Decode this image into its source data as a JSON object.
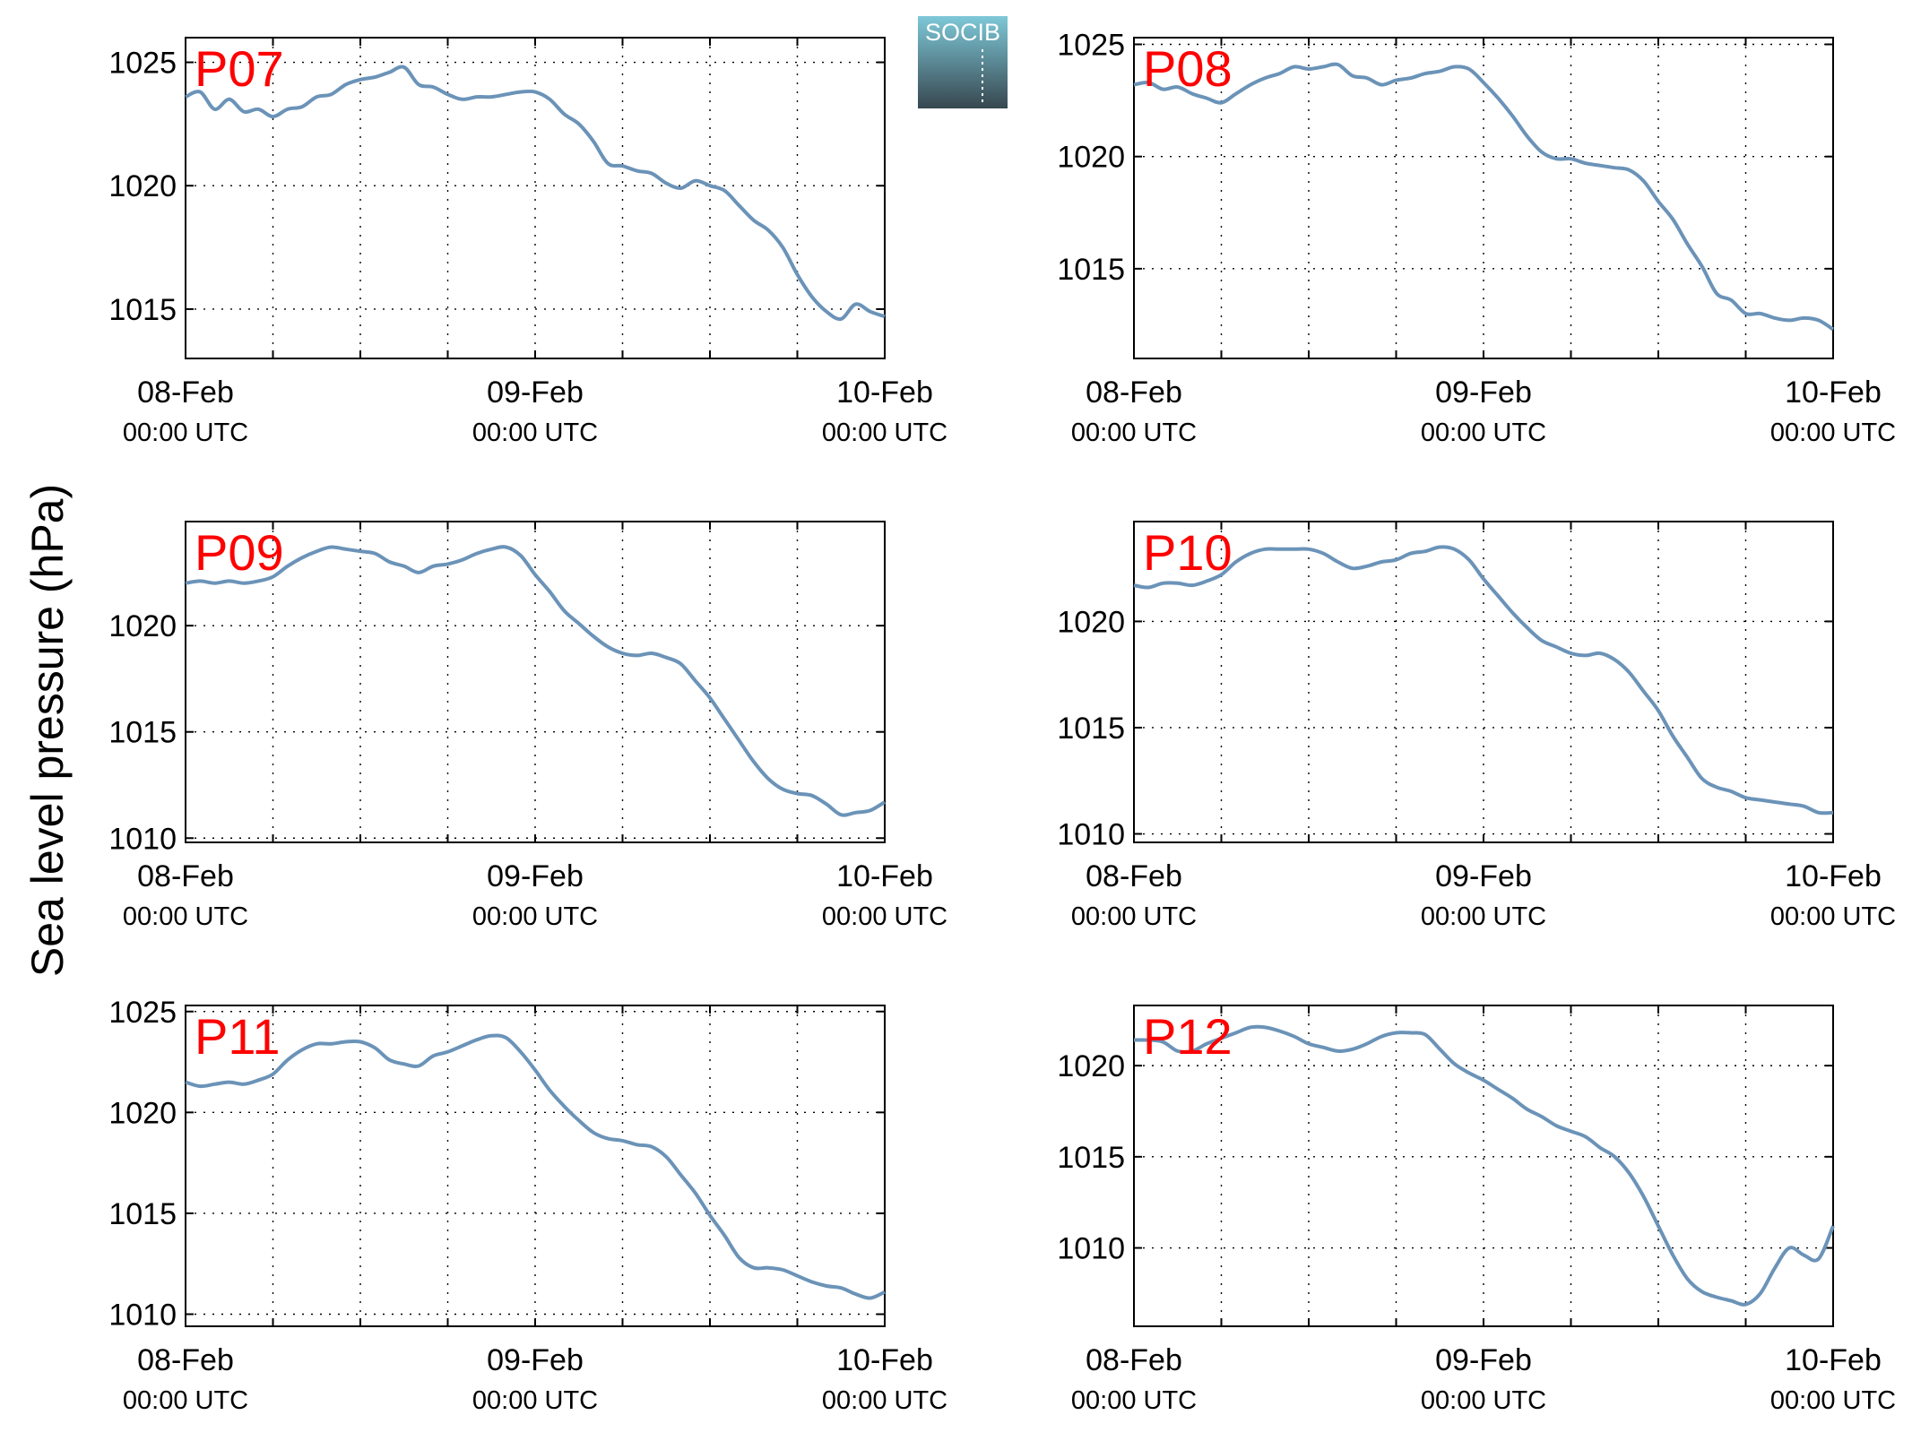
{
  "figure": {
    "ylabel": "Sea level pressure (hPa)",
    "logo": {
      "text": "SOCIB",
      "colors": {
        "top": "#7ec8d8",
        "bottom": "#37474f"
      }
    },
    "line_color": "#6b93b8",
    "label_color": "#ff0000"
  },
  "chart_data": [
    {
      "type": "line",
      "title": "P07",
      "ylim": [
        1013,
        1026
      ],
      "yticks": [
        1015,
        1020,
        1025
      ],
      "xlim": [
        0,
        48
      ],
      "grid": true,
      "xticks": [
        {
          "x": 0,
          "date": "08-Feb",
          "time": "00:00 UTC"
        },
        {
          "x": 24,
          "date": "09-Feb",
          "time": "00:00 UTC"
        },
        {
          "x": 48,
          "date": "10-Feb",
          "time": "00:00 UTC"
        }
      ],
      "x": [
        0,
        1,
        2,
        3,
        4,
        5,
        6,
        7,
        8,
        9,
        10,
        11,
        12,
        13,
        14,
        15,
        16,
        17,
        18,
        19,
        20,
        21,
        22,
        23,
        24,
        25,
        26,
        27,
        28,
        29,
        30,
        31,
        32,
        33,
        34,
        35,
        36,
        37,
        38,
        39,
        40,
        41,
        42,
        43,
        44,
        45,
        46,
        47,
        48
      ],
      "y": [
        1023.6,
        1023.8,
        1023.1,
        1023.5,
        1023.0,
        1023.1,
        1022.8,
        1023.1,
        1023.2,
        1023.6,
        1023.7,
        1024.1,
        1024.3,
        1024.4,
        1024.6,
        1024.8,
        1024.1,
        1024.0,
        1023.7,
        1023.5,
        1023.6,
        1023.6,
        1023.7,
        1023.8,
        1023.8,
        1023.5,
        1022.9,
        1022.5,
        1021.8,
        1020.9,
        1020.8,
        1020.6,
        1020.5,
        1020.1,
        1019.9,
        1020.2,
        1020.0,
        1019.8,
        1019.2,
        1018.6,
        1018.2,
        1017.5,
        1016.4,
        1015.5,
        1014.9,
        1014.6,
        1015.2,
        1014.9,
        1014.7
      ]
    },
    {
      "type": "line",
      "title": "P08",
      "ylim": [
        1011,
        1025.3
      ],
      "yticks": [
        1015,
        1020,
        1025
      ],
      "xlim": [
        0,
        48
      ],
      "grid": true,
      "xticks": [
        {
          "x": 0,
          "date": "08-Feb",
          "time": "00:00 UTC"
        },
        {
          "x": 24,
          "date": "09-Feb",
          "time": "00:00 UTC"
        },
        {
          "x": 48,
          "date": "10-Feb",
          "time": "00:00 UTC"
        }
      ],
      "x": [
        0,
        1,
        2,
        3,
        4,
        5,
        6,
        7,
        8,
        9,
        10,
        11,
        12,
        13,
        14,
        15,
        16,
        17,
        18,
        19,
        20,
        21,
        22,
        23,
        24,
        25,
        26,
        27,
        28,
        29,
        30,
        31,
        32,
        33,
        34,
        35,
        36,
        37,
        38,
        39,
        40,
        41,
        42,
        43,
        44,
        45,
        46,
        47,
        48
      ],
      "y": [
        1023.2,
        1023.3,
        1023.0,
        1023.1,
        1022.8,
        1022.6,
        1022.4,
        1022.8,
        1023.2,
        1023.5,
        1023.7,
        1024.0,
        1023.9,
        1024.0,
        1024.1,
        1023.6,
        1023.5,
        1023.2,
        1023.4,
        1023.5,
        1023.7,
        1023.8,
        1024.0,
        1023.9,
        1023.3,
        1022.6,
        1021.8,
        1020.9,
        1020.2,
        1019.9,
        1019.9,
        1019.7,
        1019.6,
        1019.5,
        1019.4,
        1018.9,
        1018.0,
        1017.2,
        1016.1,
        1015.1,
        1013.9,
        1013.6,
        1013.0,
        1013.0,
        1012.8,
        1012.7,
        1012.8,
        1012.7,
        1012.3
      ]
    },
    {
      "type": "line",
      "title": "P09",
      "ylim": [
        1009.8,
        1024.9
      ],
      "yticks": [
        1010,
        1015,
        1020
      ],
      "xlim": [
        0,
        48
      ],
      "grid": true,
      "xticks": [
        {
          "x": 0,
          "date": "08-Feb",
          "time": "00:00 UTC"
        },
        {
          "x": 24,
          "date": "09-Feb",
          "time": "00:00 UTC"
        },
        {
          "x": 48,
          "date": "10-Feb",
          "time": "00:00 UTC"
        }
      ],
      "x": [
        0,
        1,
        2,
        3,
        4,
        5,
        6,
        7,
        8,
        9,
        10,
        11,
        12,
        13,
        14,
        15,
        16,
        17,
        18,
        19,
        20,
        21,
        22,
        23,
        24,
        25,
        26,
        27,
        28,
        29,
        30,
        31,
        32,
        33,
        34,
        35,
        36,
        37,
        38,
        39,
        40,
        41,
        42,
        43,
        44,
        45,
        46,
        47,
        48
      ],
      "y": [
        1022.0,
        1022.1,
        1022.0,
        1022.1,
        1022.0,
        1022.1,
        1022.3,
        1022.8,
        1023.2,
        1023.5,
        1023.7,
        1023.6,
        1023.5,
        1023.4,
        1023.0,
        1022.8,
        1022.5,
        1022.8,
        1022.9,
        1023.1,
        1023.4,
        1023.6,
        1023.7,
        1023.3,
        1022.4,
        1021.6,
        1020.7,
        1020.1,
        1019.5,
        1019.0,
        1018.7,
        1018.6,
        1018.7,
        1018.5,
        1018.2,
        1017.4,
        1016.6,
        1015.6,
        1014.6,
        1013.6,
        1012.8,
        1012.3,
        1012.1,
        1012.0,
        1011.6,
        1011.1,
        1011.2,
        1011.3,
        1011.7
      ]
    },
    {
      "type": "line",
      "title": "P10",
      "ylim": [
        1009.6,
        1024.7
      ],
      "yticks": [
        1010,
        1015,
        1020
      ],
      "xlim": [
        0,
        48
      ],
      "grid": true,
      "xticks": [
        {
          "x": 0,
          "date": "08-Feb",
          "time": "00:00 UTC"
        },
        {
          "x": 24,
          "date": "09-Feb",
          "time": "00:00 UTC"
        },
        {
          "x": 48,
          "date": "10-Feb",
          "time": "00:00 UTC"
        }
      ],
      "x": [
        0,
        1,
        2,
        3,
        4,
        5,
        6,
        7,
        8,
        9,
        10,
        11,
        12,
        13,
        14,
        15,
        16,
        17,
        18,
        19,
        20,
        21,
        22,
        23,
        24,
        25,
        26,
        27,
        28,
        29,
        30,
        31,
        32,
        33,
        34,
        35,
        36,
        37,
        38,
        39,
        40,
        41,
        42,
        43,
        44,
        45,
        46,
        47,
        48
      ],
      "y": [
        1021.7,
        1021.6,
        1021.8,
        1021.8,
        1021.7,
        1021.9,
        1022.2,
        1022.8,
        1023.2,
        1023.4,
        1023.4,
        1023.4,
        1023.4,
        1023.2,
        1022.8,
        1022.5,
        1022.6,
        1022.8,
        1022.9,
        1023.2,
        1023.3,
        1023.5,
        1023.4,
        1022.9,
        1022.0,
        1021.2,
        1020.4,
        1019.7,
        1019.1,
        1018.8,
        1018.5,
        1018.4,
        1018.5,
        1018.2,
        1017.6,
        1016.7,
        1015.8,
        1014.6,
        1013.6,
        1012.6,
        1012.2,
        1012.0,
        1011.7,
        1011.6,
        1011.5,
        1011.4,
        1011.3,
        1011.0,
        1011.0
      ]
    },
    {
      "type": "line",
      "title": "P11",
      "ylim": [
        1009.4,
        1025.3
      ],
      "yticks": [
        1010,
        1015,
        1020,
        1025
      ],
      "xlim": [
        0,
        48
      ],
      "grid": true,
      "xticks": [
        {
          "x": 0,
          "date": "08-Feb",
          "time": "00:00 UTC"
        },
        {
          "x": 24,
          "date": "09-Feb",
          "time": "00:00 UTC"
        },
        {
          "x": 48,
          "date": "10-Feb",
          "time": "00:00 UTC"
        }
      ],
      "x": [
        0,
        1,
        2,
        3,
        4,
        5,
        6,
        7,
        8,
        9,
        10,
        11,
        12,
        13,
        14,
        15,
        16,
        17,
        18,
        19,
        20,
        21,
        22,
        23,
        24,
        25,
        26,
        27,
        28,
        29,
        30,
        31,
        32,
        33,
        34,
        35,
        36,
        37,
        38,
        39,
        40,
        41,
        42,
        43,
        44,
        45,
        46,
        47,
        48
      ],
      "y": [
        1021.5,
        1021.3,
        1021.4,
        1021.5,
        1021.4,
        1021.6,
        1021.9,
        1022.6,
        1023.1,
        1023.4,
        1023.4,
        1023.5,
        1023.5,
        1023.2,
        1022.6,
        1022.4,
        1022.3,
        1022.8,
        1023.0,
        1023.3,
        1023.6,
        1023.8,
        1023.7,
        1023.0,
        1022.1,
        1021.1,
        1020.3,
        1019.6,
        1019.0,
        1018.7,
        1018.6,
        1018.4,
        1018.3,
        1017.8,
        1016.9,
        1016.0,
        1014.9,
        1013.9,
        1012.8,
        1012.3,
        1012.3,
        1012.2,
        1011.9,
        1011.6,
        1011.4,
        1011.3,
        1011.0,
        1010.8,
        1011.1
      ]
    },
    {
      "type": "line",
      "title": "P12",
      "ylim": [
        1005.7,
        1023.3
      ],
      "yticks": [
        1010,
        1015,
        1020
      ],
      "xlim": [
        0,
        48
      ],
      "grid": true,
      "xticks": [
        {
          "x": 0,
          "date": "08-Feb",
          "time": "00:00 UTC"
        },
        {
          "x": 24,
          "date": "09-Feb",
          "time": "00:00 UTC"
        },
        {
          "x": 48,
          "date": "10-Feb",
          "time": "00:00 UTC"
        }
      ],
      "x": [
        0,
        1,
        2,
        3,
        4,
        5,
        6,
        7,
        8,
        9,
        10,
        11,
        12,
        13,
        14,
        15,
        16,
        17,
        18,
        19,
        20,
        21,
        22,
        23,
        24,
        25,
        26,
        27,
        28,
        29,
        30,
        31,
        32,
        33,
        34,
        35,
        36,
        37,
        38,
        39,
        40,
        41,
        42,
        43,
        44,
        45,
        46,
        47,
        48
      ],
      "y": [
        1021.4,
        1021.4,
        1021.3,
        1020.8,
        1020.8,
        1021.2,
        1021.5,
        1021.8,
        1022.1,
        1022.1,
        1021.9,
        1021.6,
        1021.2,
        1021.0,
        1020.8,
        1020.9,
        1021.2,
        1021.6,
        1021.8,
        1021.8,
        1021.7,
        1020.9,
        1020.1,
        1019.6,
        1019.2,
        1018.7,
        1018.2,
        1017.6,
        1017.2,
        1016.7,
        1016.4,
        1016.1,
        1015.5,
        1015.0,
        1014.1,
        1012.8,
        1011.2,
        1009.6,
        1008.3,
        1007.6,
        1007.3,
        1007.1,
        1006.9,
        1007.5,
        1008.9,
        1010.0,
        1009.6,
        1009.4,
        1011.2
      ]
    }
  ]
}
